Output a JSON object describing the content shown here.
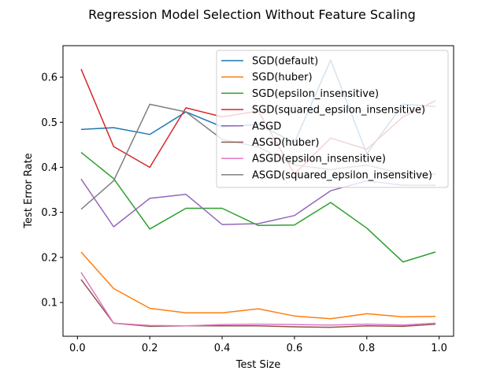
{
  "chart_data": {
    "type": "line",
    "title": "Regression Model Selection Without Feature Scaling",
    "xlabel": "Test Size",
    "ylabel": "Test Error Rate",
    "xlim": [
      -0.04,
      1.04
    ],
    "ylim": [
      0.025,
      0.67
    ],
    "xticks": [
      0.0,
      0.2,
      0.4,
      0.6,
      0.8,
      1.0
    ],
    "xtick_labels": [
      "0.0",
      "0.2",
      "0.4",
      "0.6",
      "0.8",
      "1.0"
    ],
    "yticks": [
      0.1,
      0.2,
      0.3,
      0.4,
      0.5,
      0.6
    ],
    "ytick_labels": [
      "0.1",
      "0.2",
      "0.3",
      "0.4",
      "0.5",
      "0.6"
    ],
    "grid": false,
    "legend_position": "top-right",
    "x": [
      0.01,
      0.1,
      0.2,
      0.3,
      0.4,
      0.5,
      0.6,
      0.7,
      0.8,
      0.9,
      0.99
    ],
    "series": [
      {
        "name": "SGD(default)",
        "color": "#1f77b4",
        "values": [
          0.484,
          0.488,
          0.473,
          0.523,
          0.49,
          0.495,
          0.455,
          0.638,
          0.43,
          0.54,
          0.535
        ]
      },
      {
        "name": "SGD(huber)",
        "color": "#ff7f0e",
        "values": [
          0.212,
          0.131,
          0.087,
          0.077,
          0.077,
          0.086,
          0.07,
          0.064,
          0.075,
          0.068,
          0.069
        ]
      },
      {
        "name": "SGD(epsilon_insensitive)",
        "color": "#2ca02c",
        "values": [
          0.433,
          0.375,
          0.263,
          0.309,
          0.309,
          0.271,
          0.272,
          0.322,
          0.265,
          0.19,
          0.212
        ]
      },
      {
        "name": "SGD(squared_epsilon_insensitive)",
        "color": "#d62728",
        "values": [
          0.618,
          0.446,
          0.4,
          0.532,
          0.512,
          0.525,
          0.385,
          0.465,
          0.44,
          0.512,
          0.548
        ]
      },
      {
        "name": "ASGD",
        "color": "#9467bd",
        "values": [
          0.374,
          0.268,
          0.331,
          0.34,
          0.273,
          0.275,
          0.293,
          0.348,
          0.37,
          0.36,
          0.36
        ]
      },
      {
        "name": "ASGD(huber)",
        "color": "#8c564b",
        "values": [
          0.151,
          0.054,
          0.047,
          0.048,
          0.048,
          0.048,
          0.046,
          0.045,
          0.048,
          0.047,
          0.052
        ]
      },
      {
        "name": "ASGD(epsilon_insensitive)",
        "color": "#e377c2",
        "values": [
          0.167,
          0.054,
          0.049,
          0.048,
          0.051,
          0.052,
          0.051,
          0.05,
          0.052,
          0.05,
          0.054
        ]
      },
      {
        "name": "ASGD(squared_epsilon_insensitive)",
        "color": "#7f7f7f",
        "values": [
          0.307,
          0.37,
          0.54,
          0.523,
          0.462,
          0.445,
          0.405,
          0.395,
          0.405,
          0.385,
          0.385
        ]
      }
    ]
  }
}
